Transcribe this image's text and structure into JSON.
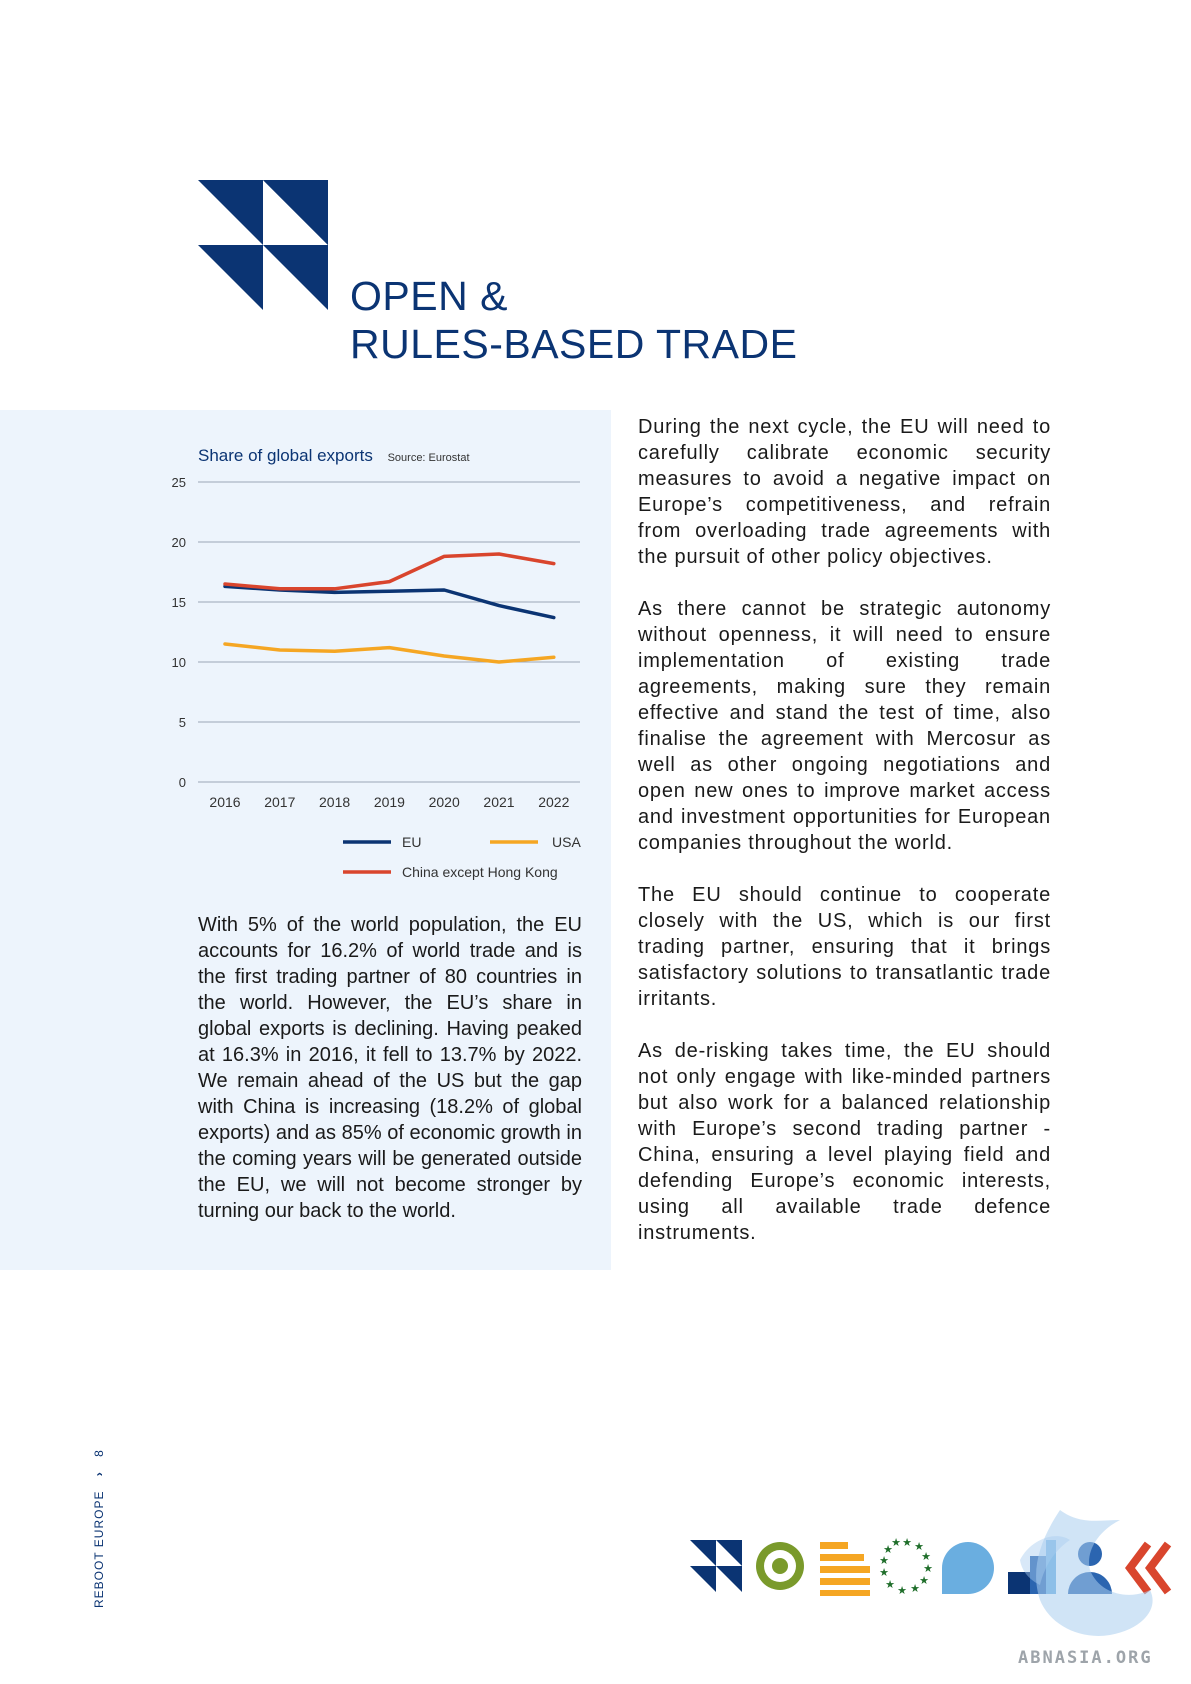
{
  "header": {
    "title_line1": "OPEN &",
    "title_line2": "RULES-BASED TRADE"
  },
  "chart": {
    "title": "Share of global exports",
    "source": "Source: Eurostat"
  },
  "chart_data": {
    "type": "line",
    "x": [
      "2016",
      "2017",
      "2018",
      "2019",
      "2020",
      "2021",
      "2022"
    ],
    "ylim": [
      0,
      25
    ],
    "yticks": [
      "0",
      "5",
      "10",
      "15",
      "20",
      "25"
    ],
    "grid": true,
    "legend_position": "bottom",
    "series": [
      {
        "name": "EU",
        "color": "#0b3473",
        "values": [
          16.3,
          16.0,
          15.8,
          15.9,
          16.0,
          14.7,
          13.7
        ]
      },
      {
        "name": "USA",
        "color": "#f5a623",
        "values": [
          11.5,
          11.0,
          10.9,
          11.2,
          10.5,
          10.0,
          10.4
        ]
      },
      {
        "name": "China except Hong Kong",
        "color": "#d9452d",
        "values": [
          16.5,
          16.1,
          16.1,
          16.7,
          18.8,
          19.0,
          18.2
        ]
      }
    ]
  },
  "left_text": "With 5% of the world population, the EU accounts for 16.2% of world trade and is the first trading partner of 80 countries in the world. However, the EU’s share in global exports is declining. Having peaked at 16.3% in 2016, it fell to 13.7% by 2022. We remain ahead of the US but the gap with China is increasing (18.2% of global exports) and as 85% of economic growth in the coming years will be generated outside the EU, we will not become stronger by turning our back to the world.",
  "right_paragraphs": [
    "During the next cycle, the EU will need to carefully calibrate economic security measures to avoid a negative impact on Europe’s competitiveness, and refrain from overloading trade agreements with the pursuit of other policy objectives.",
    "As there cannot be strategic autonomy without openness, it will  need to ensure implementation of existing trade agreements, making sure they remain effective and stand the test of time, also finalise the agreement with Mercosur as well as other ongoing negotiations and open new ones to improve market access and investment opportunities for European companies throughout the world.",
    "The EU should continue to cooperate closely with the US, which is our first trading partner, ensuring that it brings satisfactory solutions to transatlantic trade irritants.",
    "As de-risking takes time, the EU should not only engage with like-minded partners but also work for a balanced relationship with Europe’s second trading partner - China, ensuring a level playing field and defending Europe’s economic interests, using all available trade defence instruments."
  ],
  "footer": {
    "publication": "REBOOT EUROPE",
    "page_number": "8",
    "watermark": "ABNASIA.ORG"
  },
  "colors": {
    "navy": "#0b3473",
    "panel": "#edf4fc",
    "green": "#7a9a2b",
    "orange": "#f5a623",
    "light_blue": "#6aaee0",
    "red": "#d9452d"
  }
}
